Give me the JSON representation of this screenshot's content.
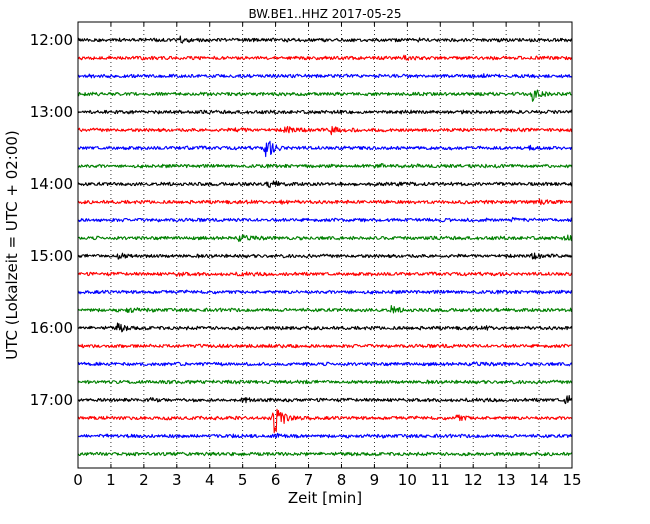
{
  "chart_data": {
    "type": "line",
    "title": "BW.BE1..HHZ 2017-05-25",
    "xlabel": "Zeit  [min]",
    "ylabel": "UTC (Lokalzeit = UTC + 02:00)",
    "xlim": [
      0,
      15
    ],
    "x_ticks": [
      "0",
      "1",
      "2",
      "3",
      "4",
      "5",
      "6",
      "7",
      "8",
      "9",
      "10",
      "11",
      "12",
      "13",
      "14",
      "15"
    ],
    "y_ticks": [
      "12:00",
      "13:00",
      "14:00",
      "15:00",
      "16:00",
      "17:00"
    ],
    "grid": "vertical dotted",
    "colors": [
      "#000000",
      "#ff0000",
      "#0000ff",
      "#008000"
    ],
    "series": [
      {
        "start": "12:00",
        "color": "#000000",
        "events": [
          {
            "t": 3.1,
            "amp": 0.35
          },
          {
            "t": 10.3,
            "amp": 0.12
          }
        ]
      },
      {
        "start": "12:15",
        "color": "#ff0000",
        "events": [
          {
            "t": 9.9,
            "amp": 0.12
          }
        ]
      },
      {
        "start": "12:30",
        "color": "#0000ff",
        "events": [
          {
            "t": 12.3,
            "amp": 0.1
          }
        ]
      },
      {
        "start": "12:45",
        "color": "#008000",
        "events": [
          {
            "t": 13.8,
            "amp": 0.75
          }
        ]
      },
      {
        "start": "13:00",
        "color": "#000000",
        "events": [
          {
            "t": 9.8,
            "amp": 0.1
          }
        ]
      },
      {
        "start": "13:15",
        "color": "#ff0000",
        "events": [
          {
            "t": 4.8,
            "amp": 0.3
          },
          {
            "t": 6.3,
            "amp": 0.55
          },
          {
            "t": 7.7,
            "amp": 0.6
          }
        ]
      },
      {
        "start": "13:30",
        "color": "#0000ff",
        "events": [
          {
            "t": 5.7,
            "amp": 1.3
          },
          {
            "t": 3.2,
            "amp": 0.12
          },
          {
            "t": 13.7,
            "amp": 0.25
          }
        ]
      },
      {
        "start": "13:45",
        "color": "#008000",
        "events": [
          {
            "t": 9.0,
            "amp": 0.2
          }
        ]
      },
      {
        "start": "14:00",
        "color": "#000000",
        "events": [
          {
            "t": 5.8,
            "amp": 0.5
          },
          {
            "t": 9.7,
            "amp": 0.12
          }
        ]
      },
      {
        "start": "14:15",
        "color": "#ff0000",
        "events": [
          {
            "t": 14.0,
            "amp": 0.2
          },
          {
            "t": 6.1,
            "amp": 0.12
          }
        ]
      },
      {
        "start": "14:30",
        "color": "#0000ff",
        "events": [
          {
            "t": 13.2,
            "amp": 0.12
          }
        ]
      },
      {
        "start": "14:45",
        "color": "#008000",
        "events": [
          {
            "t": 4.9,
            "amp": 0.4
          },
          {
            "t": 14.8,
            "amp": 0.25
          }
        ]
      },
      {
        "start": "15:00",
        "color": "#000000",
        "events": [
          {
            "t": 1.2,
            "amp": 0.35
          },
          {
            "t": 13.8,
            "amp": 0.3
          }
        ]
      },
      {
        "start": "15:15",
        "color": "#ff0000",
        "events": [
          {
            "t": 3.0,
            "amp": 0.15
          },
          {
            "t": 4.9,
            "amp": 0.12
          }
        ]
      },
      {
        "start": "15:30",
        "color": "#0000ff",
        "events": [
          {
            "t": 8.0,
            "amp": 0.15
          }
        ]
      },
      {
        "start": "15:45",
        "color": "#008000",
        "events": [
          {
            "t": 1.5,
            "amp": 0.3
          },
          {
            "t": 9.5,
            "amp": 0.4
          }
        ]
      },
      {
        "start": "16:00",
        "color": "#000000",
        "events": [
          {
            "t": 1.2,
            "amp": 0.5
          },
          {
            "t": 12.4,
            "amp": 0.12
          }
        ]
      },
      {
        "start": "16:15",
        "color": "#ff0000",
        "events": [
          {
            "t": 11.0,
            "amp": 0.1
          }
        ]
      },
      {
        "start": "16:30",
        "color": "#0000ff",
        "events": [
          {
            "t": 12.0,
            "amp": 0.1
          }
        ]
      },
      {
        "start": "16:45",
        "color": "#008000",
        "events": []
      },
      {
        "start": "17:00",
        "color": "#000000",
        "events": [
          {
            "t": 2.2,
            "amp": 0.15
          },
          {
            "t": 5.0,
            "amp": 0.2
          },
          {
            "t": 14.8,
            "amp": 0.6
          }
        ]
      },
      {
        "start": "17:15",
        "color": "#ff0000",
        "events": [
          {
            "t": 5.95,
            "amp": 2.4
          },
          {
            "t": 11.5,
            "amp": 0.35
          }
        ]
      },
      {
        "start": "17:30",
        "color": "#0000ff",
        "events": [
          {
            "t": 6.0,
            "amp": 0.2
          }
        ]
      },
      {
        "start": "17:45",
        "color": "#008000",
        "events": []
      }
    ]
  }
}
